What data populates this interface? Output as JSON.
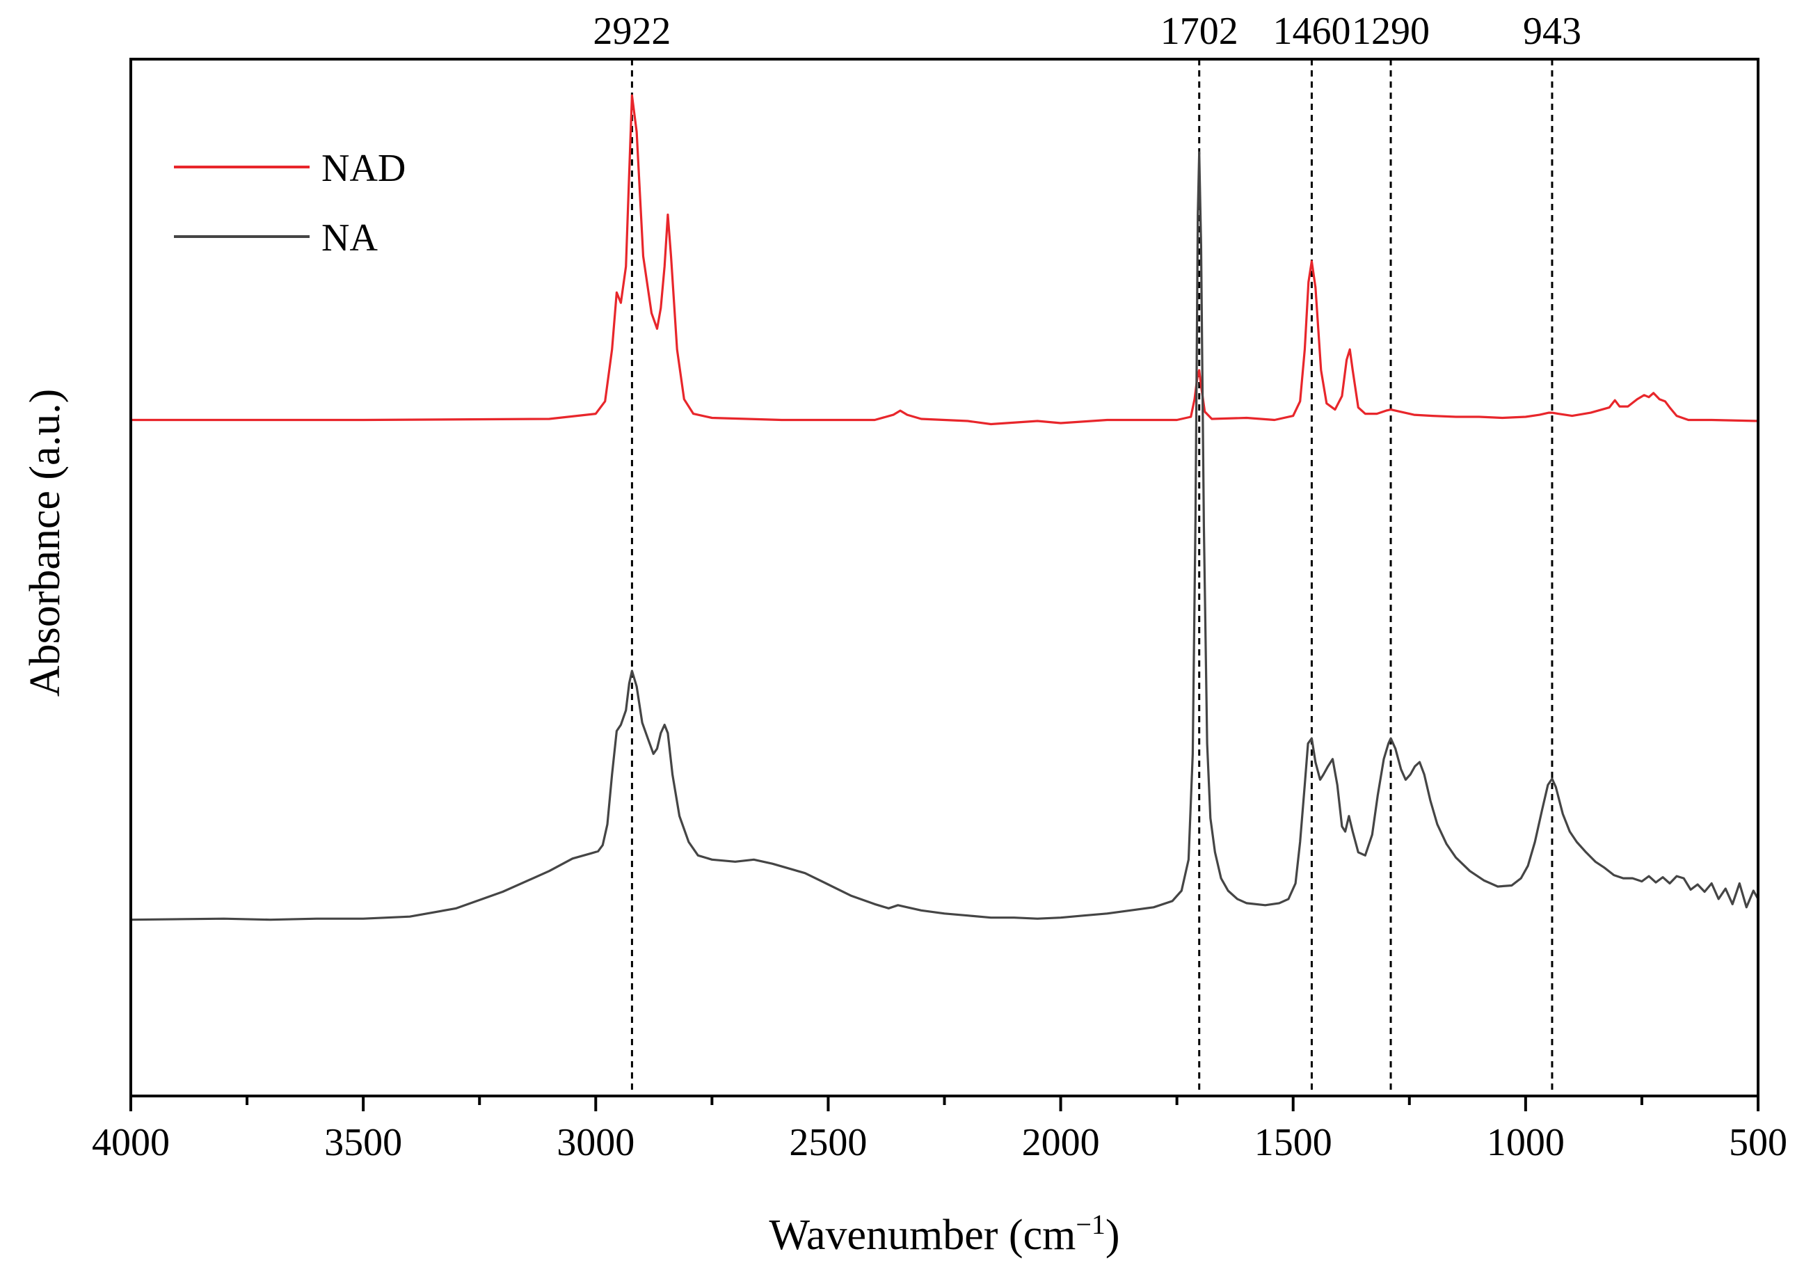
{
  "chart_data": {
    "type": "line",
    "title": "",
    "xlabel": "Wavenumber (cm",
    "xlabel_superscript": "−1",
    "xlabel_suffix": ")",
    "ylabel": "Absorbance (a.u.)",
    "xlim": [
      4000,
      500
    ],
    "ylim": [
      0,
      1
    ],
    "x_ticks": [
      4000,
      3500,
      3000,
      2500,
      2000,
      1500,
      1000,
      500
    ],
    "x_tick_labels": [
      "4000",
      "3500",
      "3000",
      "2500",
      "2000",
      "1500",
      "1000",
      "500"
    ],
    "x_minor_step": 250,
    "y_ticks_shown": false,
    "grid": false,
    "legend_position": "top-left",
    "reference_lines": [
      {
        "x": 2922,
        "label": "2922"
      },
      {
        "x": 1702,
        "label": "1702"
      },
      {
        "x": 1460,
        "label": "1460"
      },
      {
        "x": 1290,
        "label": "1290"
      },
      {
        "x": 943,
        "label": "943"
      }
    ],
    "series": [
      {
        "name": "NAD",
        "color": "#e8262b",
        "points": [
          [
            4000,
            0.652
          ],
          [
            3500,
            0.652
          ],
          [
            3100,
            0.653
          ],
          [
            3000,
            0.658
          ],
          [
            2980,
            0.67
          ],
          [
            2965,
            0.72
          ],
          [
            2955,
            0.775
          ],
          [
            2946,
            0.765
          ],
          [
            2935,
            0.8
          ],
          [
            2928,
            0.89
          ],
          [
            2922,
            0.965
          ],
          [
            2912,
            0.93
          ],
          [
            2898,
            0.81
          ],
          [
            2880,
            0.755
          ],
          [
            2868,
            0.74
          ],
          [
            2860,
            0.76
          ],
          [
            2852,
            0.8
          ],
          [
            2845,
            0.85
          ],
          [
            2838,
            0.81
          ],
          [
            2825,
            0.72
          ],
          [
            2810,
            0.672
          ],
          [
            2790,
            0.658
          ],
          [
            2750,
            0.654
          ],
          [
            2600,
            0.652
          ],
          [
            2400,
            0.652
          ],
          [
            2360,
            0.657
          ],
          [
            2345,
            0.661
          ],
          [
            2330,
            0.657
          ],
          [
            2300,
            0.653
          ],
          [
            2200,
            0.651
          ],
          [
            2150,
            0.648
          ],
          [
            2050,
            0.651
          ],
          [
            2000,
            0.649
          ],
          [
            1900,
            0.652
          ],
          [
            1750,
            0.652
          ],
          [
            1720,
            0.655
          ],
          [
            1712,
            0.672
          ],
          [
            1706,
            0.693
          ],
          [
            1702,
            0.7
          ],
          [
            1698,
            0.685
          ],
          [
            1690,
            0.66
          ],
          [
            1675,
            0.653
          ],
          [
            1600,
            0.654
          ],
          [
            1540,
            0.652
          ],
          [
            1500,
            0.656
          ],
          [
            1485,
            0.67
          ],
          [
            1475,
            0.72
          ],
          [
            1467,
            0.785
          ],
          [
            1460,
            0.805
          ],
          [
            1452,
            0.78
          ],
          [
            1440,
            0.7
          ],
          [
            1428,
            0.668
          ],
          [
            1410,
            0.662
          ],
          [
            1395,
            0.675
          ],
          [
            1385,
            0.71
          ],
          [
            1378,
            0.72
          ],
          [
            1372,
            0.7
          ],
          [
            1360,
            0.664
          ],
          [
            1345,
            0.658
          ],
          [
            1320,
            0.658
          ],
          [
            1300,
            0.661
          ],
          [
            1290,
            0.662
          ],
          [
            1270,
            0.66
          ],
          [
            1240,
            0.657
          ],
          [
            1200,
            0.656
          ],
          [
            1150,
            0.655
          ],
          [
            1100,
            0.655
          ],
          [
            1050,
            0.654
          ],
          [
            1000,
            0.655
          ],
          [
            970,
            0.657
          ],
          [
            950,
            0.659
          ],
          [
            943,
            0.659
          ],
          [
            930,
            0.658
          ],
          [
            900,
            0.656
          ],
          [
            860,
            0.659
          ],
          [
            820,
            0.664
          ],
          [
            808,
            0.671
          ],
          [
            798,
            0.665
          ],
          [
            780,
            0.665
          ],
          [
            760,
            0.672
          ],
          [
            745,
            0.676
          ],
          [
            735,
            0.674
          ],
          [
            725,
            0.678
          ],
          [
            712,
            0.672
          ],
          [
            700,
            0.67
          ],
          [
            690,
            0.664
          ],
          [
            675,
            0.656
          ],
          [
            650,
            0.652
          ],
          [
            600,
            0.652
          ],
          [
            500,
            0.651
          ]
        ]
      },
      {
        "name": "NA",
        "color": "#454545",
        "points": [
          [
            4000,
            0.17
          ],
          [
            3800,
            0.171
          ],
          [
            3700,
            0.17
          ],
          [
            3600,
            0.171
          ],
          [
            3500,
            0.171
          ],
          [
            3400,
            0.173
          ],
          [
            3300,
            0.181
          ],
          [
            3200,
            0.197
          ],
          [
            3100,
            0.217
          ],
          [
            3050,
            0.229
          ],
          [
            3010,
            0.234
          ],
          [
            2995,
            0.236
          ],
          [
            2985,
            0.242
          ],
          [
            2975,
            0.262
          ],
          [
            2965,
            0.31
          ],
          [
            2955,
            0.352
          ],
          [
            2946,
            0.358
          ],
          [
            2935,
            0.372
          ],
          [
            2928,
            0.398
          ],
          [
            2922,
            0.41
          ],
          [
            2912,
            0.395
          ],
          [
            2900,
            0.36
          ],
          [
            2888,
            0.345
          ],
          [
            2876,
            0.33
          ],
          [
            2868,
            0.335
          ],
          [
            2860,
            0.35
          ],
          [
            2852,
            0.358
          ],
          [
            2845,
            0.35
          ],
          [
            2835,
            0.31
          ],
          [
            2820,
            0.27
          ],
          [
            2800,
            0.245
          ],
          [
            2780,
            0.232
          ],
          [
            2750,
            0.228
          ],
          [
            2700,
            0.226
          ],
          [
            2660,
            0.228
          ],
          [
            2620,
            0.224
          ],
          [
            2550,
            0.215
          ],
          [
            2500,
            0.204
          ],
          [
            2450,
            0.193
          ],
          [
            2400,
            0.185
          ],
          [
            2370,
            0.181
          ],
          [
            2350,
            0.184
          ],
          [
            2330,
            0.182
          ],
          [
            2300,
            0.179
          ],
          [
            2250,
            0.176
          ],
          [
            2200,
            0.174
          ],
          [
            2150,
            0.172
          ],
          [
            2100,
            0.172
          ],
          [
            2050,
            0.171
          ],
          [
            2000,
            0.172
          ],
          [
            1950,
            0.174
          ],
          [
            1900,
            0.176
          ],
          [
            1850,
            0.179
          ],
          [
            1800,
            0.182
          ],
          [
            1760,
            0.188
          ],
          [
            1740,
            0.198
          ],
          [
            1725,
            0.228
          ],
          [
            1716,
            0.33
          ],
          [
            1710,
            0.56
          ],
          [
            1705,
            0.85
          ],
          [
            1702,
            0.91
          ],
          [
            1698,
            0.82
          ],
          [
            1692,
            0.55
          ],
          [
            1685,
            0.34
          ],
          [
            1678,
            0.268
          ],
          [
            1668,
            0.235
          ],
          [
            1655,
            0.21
          ],
          [
            1640,
            0.198
          ],
          [
            1620,
            0.19
          ],
          [
            1600,
            0.186
          ],
          [
            1560,
            0.184
          ],
          [
            1530,
            0.186
          ],
          [
            1510,
            0.19
          ],
          [
            1495,
            0.205
          ],
          [
            1485,
            0.245
          ],
          [
            1475,
            0.3
          ],
          [
            1468,
            0.34
          ],
          [
            1460,
            0.345
          ],
          [
            1452,
            0.322
          ],
          [
            1442,
            0.305
          ],
          [
            1435,
            0.31
          ],
          [
            1425,
            0.318
          ],
          [
            1415,
            0.325
          ],
          [
            1405,
            0.3
          ],
          [
            1395,
            0.26
          ],
          [
            1388,
            0.255
          ],
          [
            1380,
            0.27
          ],
          [
            1372,
            0.255
          ],
          [
            1360,
            0.235
          ],
          [
            1345,
            0.232
          ],
          [
            1330,
            0.252
          ],
          [
            1318,
            0.29
          ],
          [
            1305,
            0.325
          ],
          [
            1295,
            0.34
          ],
          [
            1290,
            0.345
          ],
          [
            1280,
            0.335
          ],
          [
            1268,
            0.315
          ],
          [
            1258,
            0.305
          ],
          [
            1248,
            0.31
          ],
          [
            1238,
            0.318
          ],
          [
            1228,
            0.322
          ],
          [
            1218,
            0.31
          ],
          [
            1205,
            0.285
          ],
          [
            1190,
            0.262
          ],
          [
            1170,
            0.243
          ],
          [
            1150,
            0.23
          ],
          [
            1120,
            0.217
          ],
          [
            1090,
            0.208
          ],
          [
            1060,
            0.202
          ],
          [
            1030,
            0.203
          ],
          [
            1010,
            0.21
          ],
          [
            995,
            0.222
          ],
          [
            980,
            0.245
          ],
          [
            965,
            0.275
          ],
          [
            952,
            0.3
          ],
          [
            943,
            0.306
          ],
          [
            935,
            0.298
          ],
          [
            920,
            0.272
          ],
          [
            905,
            0.255
          ],
          [
            890,
            0.245
          ],
          [
            870,
            0.235
          ],
          [
            850,
            0.226
          ],
          [
            830,
            0.22
          ],
          [
            810,
            0.213
          ],
          [
            790,
            0.21
          ],
          [
            770,
            0.21
          ],
          [
            750,
            0.207
          ],
          [
            735,
            0.212
          ],
          [
            720,
            0.206
          ],
          [
            705,
            0.211
          ],
          [
            690,
            0.205
          ],
          [
            675,
            0.212
          ],
          [
            660,
            0.21
          ],
          [
            645,
            0.199
          ],
          [
            630,
            0.204
          ],
          [
            615,
            0.197
          ],
          [
            600,
            0.205
          ],
          [
            585,
            0.19
          ],
          [
            570,
            0.2
          ],
          [
            555,
            0.185
          ],
          [
            540,
            0.205
          ],
          [
            525,
            0.182
          ],
          [
            510,
            0.198
          ],
          [
            500,
            0.19
          ]
        ]
      }
    ]
  }
}
